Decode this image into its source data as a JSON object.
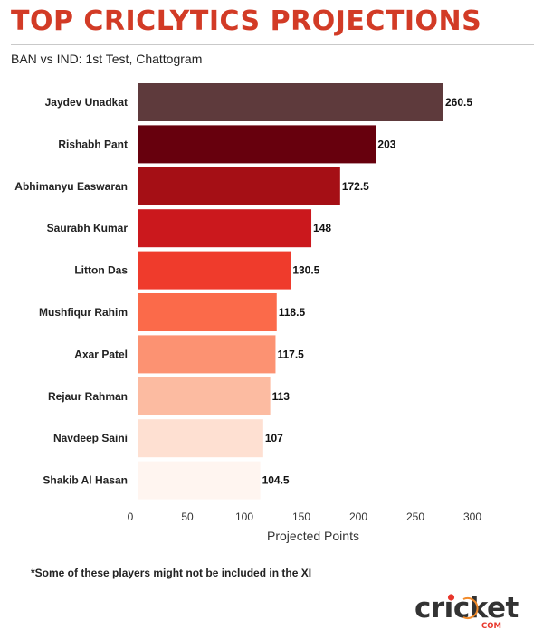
{
  "header": {
    "title": "TOP CRICLYTICS PROJECTIONS",
    "subtitle": "BAN vs IND: 1st Test, Chattogram"
  },
  "footnote": "*Some of these players might not be included in the XI",
  "brand": {
    "name_part1": "cr",
    "name_part2": "cket",
    "suffix": "COM"
  },
  "chart_data": {
    "type": "bar",
    "orientation": "horizontal",
    "categories": [
      "Jaydev Unadkat",
      "Rishabh Pant",
      "Abhimanyu Easwaran",
      "Saurabh Kumar",
      "Litton Das",
      "Mushfiqur Rahim",
      "Axar Patel",
      "Rejaur Rahman",
      "Navdeep Saini",
      "Shakib Al Hasan"
    ],
    "values": [
      260.5,
      203,
      172.5,
      148,
      130.5,
      118.5,
      117.5,
      113,
      107,
      104.5
    ],
    "value_labels": [
      "260.5",
      "203",
      "172.5",
      "148",
      "130.5",
      "118.5",
      "117.5",
      "113",
      "107",
      "104.5"
    ],
    "colors": [
      "#5e3a3c",
      "#67000d",
      "#a50f15",
      "#cb181d",
      "#ef3b2c",
      "#fb6a4a",
      "#fc9272",
      "#fcbba1",
      "#fee0d2",
      "#fff5f0"
    ],
    "xlabel": "Projected Points",
    "ylabel": "",
    "xlim": [
      0,
      300
    ],
    "xticks": [
      0,
      50,
      100,
      150,
      200,
      250,
      300
    ],
    "grid": false,
    "legend": "none"
  }
}
